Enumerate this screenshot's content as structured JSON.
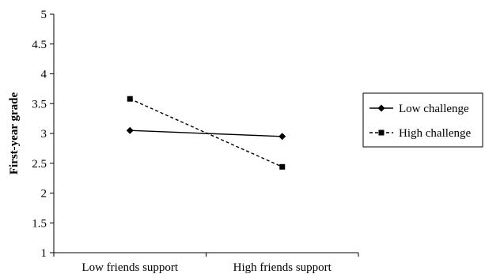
{
  "chart_data": {
    "type": "line",
    "categories": [
      "Low friends support",
      "High friends support"
    ],
    "series": [
      {
        "name": "Low challenge",
        "values": [
          3.05,
          2.95
        ],
        "marker": "diamond",
        "line_style": "solid",
        "color": "#000000"
      },
      {
        "name": "High challenge",
        "values": [
          3.58,
          2.44
        ],
        "marker": "square",
        "line_style": "dashed",
        "color": "#000000"
      }
    ],
    "title": "",
    "xlabel": "",
    "ylabel": "First-year grade",
    "ylim": [
      1,
      5
    ],
    "yticks": [
      "1",
      "1.5",
      "2",
      "2.5",
      "3",
      "3.5",
      "4",
      "4.5",
      "5"
    ],
    "grid": false,
    "legend_position": "right"
  }
}
